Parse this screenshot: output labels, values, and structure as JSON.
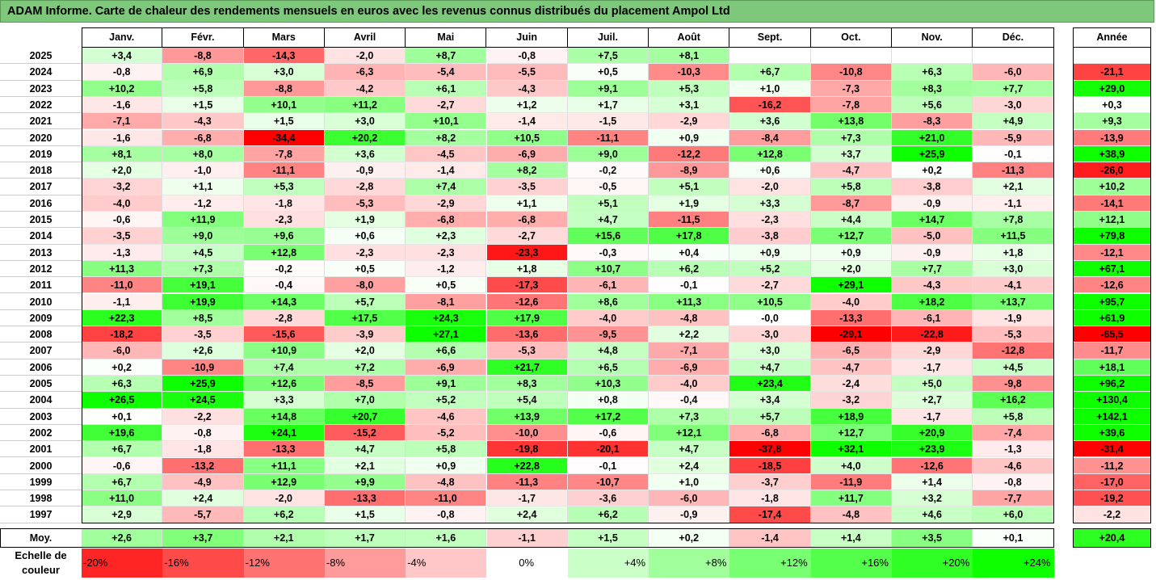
{
  "title": "ADAM Informe. Carte de chaleur des rendements mensuels en euros avec les revenus connus distribués du placement Ampol Ltd",
  "chart_data": {
    "type": "heatmap",
    "title": "ADAM Informe. Carte de chaleur des rendements mensuels en euros avec les revenus connus distribués du placement Ampol Ltd",
    "columns": [
      "Janv.",
      "Févr.",
      "Mars",
      "Avril",
      "Mai",
      "Juin",
      "Juil.",
      "Août",
      "Sept.",
      "Oct.",
      "Nov.",
      "Déc."
    ],
    "annual_header": "Année",
    "rows": [
      {
        "year": "2025",
        "values": [
          "+3,4",
          "-8,8",
          "-14,3",
          "-2,0",
          "+8,7",
          "-0,8",
          "+7,5",
          "+8,1",
          "",
          "",
          "",
          ""
        ],
        "annual": ""
      },
      {
        "year": "2024",
        "values": [
          "-0,8",
          "+6,9",
          "+3,0",
          "-6,3",
          "-5,4",
          "-5,5",
          "+0,5",
          "-10,3",
          "+6,7",
          "-10,8",
          "+6,3",
          "-6,0"
        ],
        "annual": "-21,1"
      },
      {
        "year": "2023",
        "values": [
          "+10,2",
          "+5,8",
          "-8,8",
          "-4,2",
          "+6,1",
          "-4,3",
          "+9,1",
          "+5,3",
          "+1,0",
          "-7,3",
          "+8,3",
          "+7,7"
        ],
        "annual": "+29,0"
      },
      {
        "year": "2022",
        "values": [
          "-1,6",
          "+1,5",
          "+10,1",
          "+11,2",
          "-2,7",
          "+1,2",
          "+1,7",
          "+3,1",
          "-16,2",
          "-7,8",
          "+5,6",
          "-3,0"
        ],
        "annual": "+0,3"
      },
      {
        "year": "2021",
        "values": [
          "-7,1",
          "-4,3",
          "+1,5",
          "+3,0",
          "+10,1",
          "-1,4",
          "-1,5",
          "-2,9",
          "+3,6",
          "+13,8",
          "-8,3",
          "+4,9"
        ],
        "annual": "+9,3"
      },
      {
        "year": "2020",
        "values": [
          "-1,6",
          "-6,8",
          "-34,4",
          "+20,2",
          "+8,2",
          "+10,5",
          "-11,1",
          "+0,9",
          "-8,4",
          "+7,3",
          "+21,0",
          "-5,9"
        ],
        "annual": "-13,9"
      },
      {
        "year": "2019",
        "values": [
          "+8,1",
          "+8,0",
          "-7,8",
          "+3,6",
          "-4,5",
          "-6,9",
          "+9,0",
          "-12,2",
          "+12,8",
          "+3,7",
          "+25,9",
          "-0,1"
        ],
        "annual": "+38,9"
      },
      {
        "year": "2018",
        "values": [
          "+2,0",
          "-1,0",
          "-11,1",
          "-0,9",
          "-1,4",
          "+8,2",
          "-0,2",
          "-8,9",
          "+0,6",
          "-4,7",
          "+0,2",
          "-11,3"
        ],
        "annual": "-26,0"
      },
      {
        "year": "2017",
        "values": [
          "-3,2",
          "+1,1",
          "+5,3",
          "-2,8",
          "+7,4",
          "-3,5",
          "-0,5",
          "+5,1",
          "-2,0",
          "+5,8",
          "-3,8",
          "+2,1"
        ],
        "annual": "+10,2"
      },
      {
        "year": "2016",
        "values": [
          "-4,0",
          "-1,2",
          "-1,8",
          "-5,3",
          "-2,9",
          "+1,1",
          "+5,1",
          "+1,9",
          "+3,3",
          "-8,7",
          "-0,9",
          "-1,1"
        ],
        "annual": "-14,1"
      },
      {
        "year": "2015",
        "values": [
          "-0,6",
          "+11,9",
          "-2,3",
          "+1,9",
          "-6,8",
          "-6,8",
          "+4,7",
          "-11,5",
          "-2,3",
          "+4,4",
          "+14,7",
          "+7,8"
        ],
        "annual": "+12,1"
      },
      {
        "year": "2014",
        "values": [
          "-3,5",
          "+9,0",
          "+9,6",
          "+0,6",
          "+2,3",
          "-2,7",
          "+15,6",
          "+17,8",
          "-3,8",
          "+12,7",
          "-5,0",
          "+11,5"
        ],
        "annual": "+79,8"
      },
      {
        "year": "2013",
        "values": [
          "-1,3",
          "+4,5",
          "+12,8",
          "-2,3",
          "-2,3",
          "-23,3",
          "-0,3",
          "+0,4",
          "+0,9",
          "+0,9",
          "-0,9",
          "+1,8"
        ],
        "annual": "-12,1"
      },
      {
        "year": "2012",
        "values": [
          "+11,3",
          "+7,3",
          "-0,2",
          "+0,5",
          "-1,2",
          "+1,8",
          "+10,7",
          "+6,2",
          "+5,2",
          "+2,0",
          "+7,7",
          "+3,0"
        ],
        "annual": "+67,1"
      },
      {
        "year": "2011",
        "values": [
          "-11,0",
          "+19,1",
          "-0,4",
          "-8,0",
          "+0,5",
          "-17,3",
          "-6,1",
          "-0,1",
          "-2,7",
          "+29,1",
          "-4,3",
          "-4,1"
        ],
        "annual": "-12,6"
      },
      {
        "year": "2010",
        "values": [
          "-1,1",
          "+19,9",
          "+14,3",
          "+5,7",
          "-8,1",
          "-12,6",
          "+8,6",
          "+11,3",
          "+10,5",
          "-4,0",
          "+18,2",
          "+13,7"
        ],
        "annual": "+95,7"
      },
      {
        "year": "2009",
        "values": [
          "+22,3",
          "+8,5",
          "-2,8",
          "+17,5",
          "+24,3",
          "+17,9",
          "-4,0",
          "-4,8",
          "-0,0",
          "-13,3",
          "-6,1",
          "-1,9"
        ],
        "annual": "+61,9"
      },
      {
        "year": "2008",
        "values": [
          "-18,2",
          "-3,5",
          "-15,6",
          "-3,9",
          "+27,1",
          "-13,6",
          "-9,5",
          "+2,2",
          "-3,0",
          "-29,1",
          "-22,8",
          "-5,3"
        ],
        "annual": "-65,5"
      },
      {
        "year": "2007",
        "values": [
          "-6,0",
          "+2,6",
          "+10,9",
          "+2,0",
          "+6,6",
          "-5,3",
          "+4,8",
          "-7,1",
          "+3,0",
          "-6,5",
          "-2,9",
          "-12,8"
        ],
        "annual": "-11,7"
      },
      {
        "year": "2006",
        "values": [
          "+0,2",
          "-10,9",
          "+7,4",
          "+7,2",
          "-6,9",
          "+21,7",
          "+6,5",
          "-6,9",
          "+4,7",
          "-4,7",
          "-1,7",
          "+4,5"
        ],
        "annual": "+18,1"
      },
      {
        "year": "2005",
        "values": [
          "+6,3",
          "+25,9",
          "+12,6",
          "-8,5",
          "+9,1",
          "+8,3",
          "+10,3",
          "-4,0",
          "+23,4",
          "-2,4",
          "+5,0",
          "-9,8"
        ],
        "annual": "+96,2"
      },
      {
        "year": "2004",
        "values": [
          "+26,5",
          "+24,5",
          "+3,3",
          "+7,0",
          "+5,2",
          "+5,4",
          "+0,8",
          "-0,4",
          "+3,4",
          "-3,2",
          "+2,7",
          "+16,2"
        ],
        "annual": "+130,4"
      },
      {
        "year": "2003",
        "values": [
          "+0,1",
          "-2,2",
          "+14,8",
          "+20,7",
          "-4,6",
          "+13,9",
          "+17,2",
          "+7,3",
          "+5,7",
          "+18,9",
          "-1,7",
          "+5,8"
        ],
        "annual": "+142,1"
      },
      {
        "year": "2002",
        "values": [
          "+19,6",
          "-0,8",
          "+24,1",
          "-15,2",
          "-5,2",
          "-10,0",
          "-0,6",
          "+12,1",
          "-6,8",
          "+12,7",
          "+20,9",
          "-7,4"
        ],
        "annual": "+39,6"
      },
      {
        "year": "2001",
        "values": [
          "+6,7",
          "-1,8",
          "-13,3",
          "+4,7",
          "+5,8",
          "-19,8",
          "-20,1",
          "+4,7",
          "-37,8",
          "+32,1",
          "+23,9",
          "-1,3"
        ],
        "annual": "-31,4"
      },
      {
        "year": "2000",
        "values": [
          "-0,6",
          "-13,2",
          "+11,1",
          "+2,1",
          "+0,9",
          "+22,8",
          "-0,1",
          "+2,4",
          "-18,5",
          "+4,0",
          "-12,6",
          "-4,6"
        ],
        "annual": "-11,2"
      },
      {
        "year": "1999",
        "values": [
          "+6,7",
          "-4,9",
          "+12,9",
          "+9,9",
          "-4,8",
          "-11,3",
          "-10,7",
          "+1,0",
          "-3,7",
          "-11,9",
          "+1,4",
          "-0,8"
        ],
        "annual": "-17,0"
      },
      {
        "year": "1998",
        "values": [
          "+11,0",
          "+2,4",
          "-2,0",
          "-13,3",
          "-11,0",
          "-1,7",
          "-3,6",
          "-6,0",
          "-1,8",
          "+11,7",
          "+3,2",
          "-7,7"
        ],
        "annual": "-19,2"
      },
      {
        "year": "1997",
        "values": [
          "+2,9",
          "-5,7",
          "+6,2",
          "+1,5",
          "-0,8",
          "+2,4",
          "+6,2",
          "-0,9",
          "-17,4",
          "-4,8",
          "+4,6",
          "+6,0"
        ],
        "annual": "-2,2"
      }
    ],
    "average": {
      "label": "Moy.",
      "values": [
        "+2,6",
        "+3,7",
        "+2,1",
        "+1,7",
        "+1,6",
        "-1,1",
        "+1,5",
        "+0,2",
        "-1,4",
        "+1,4",
        "+3,5",
        "+0,1"
      ],
      "annual": "+20,4"
    },
    "scale": {
      "label": "Echelle de couleur",
      "steps": [
        "-20%",
        "-16%",
        "-12%",
        "-8%",
        "-4%",
        "0%",
        "+4%",
        "+8%",
        "+12%",
        "+16%",
        "+20%",
        "+24%"
      ]
    }
  }
}
